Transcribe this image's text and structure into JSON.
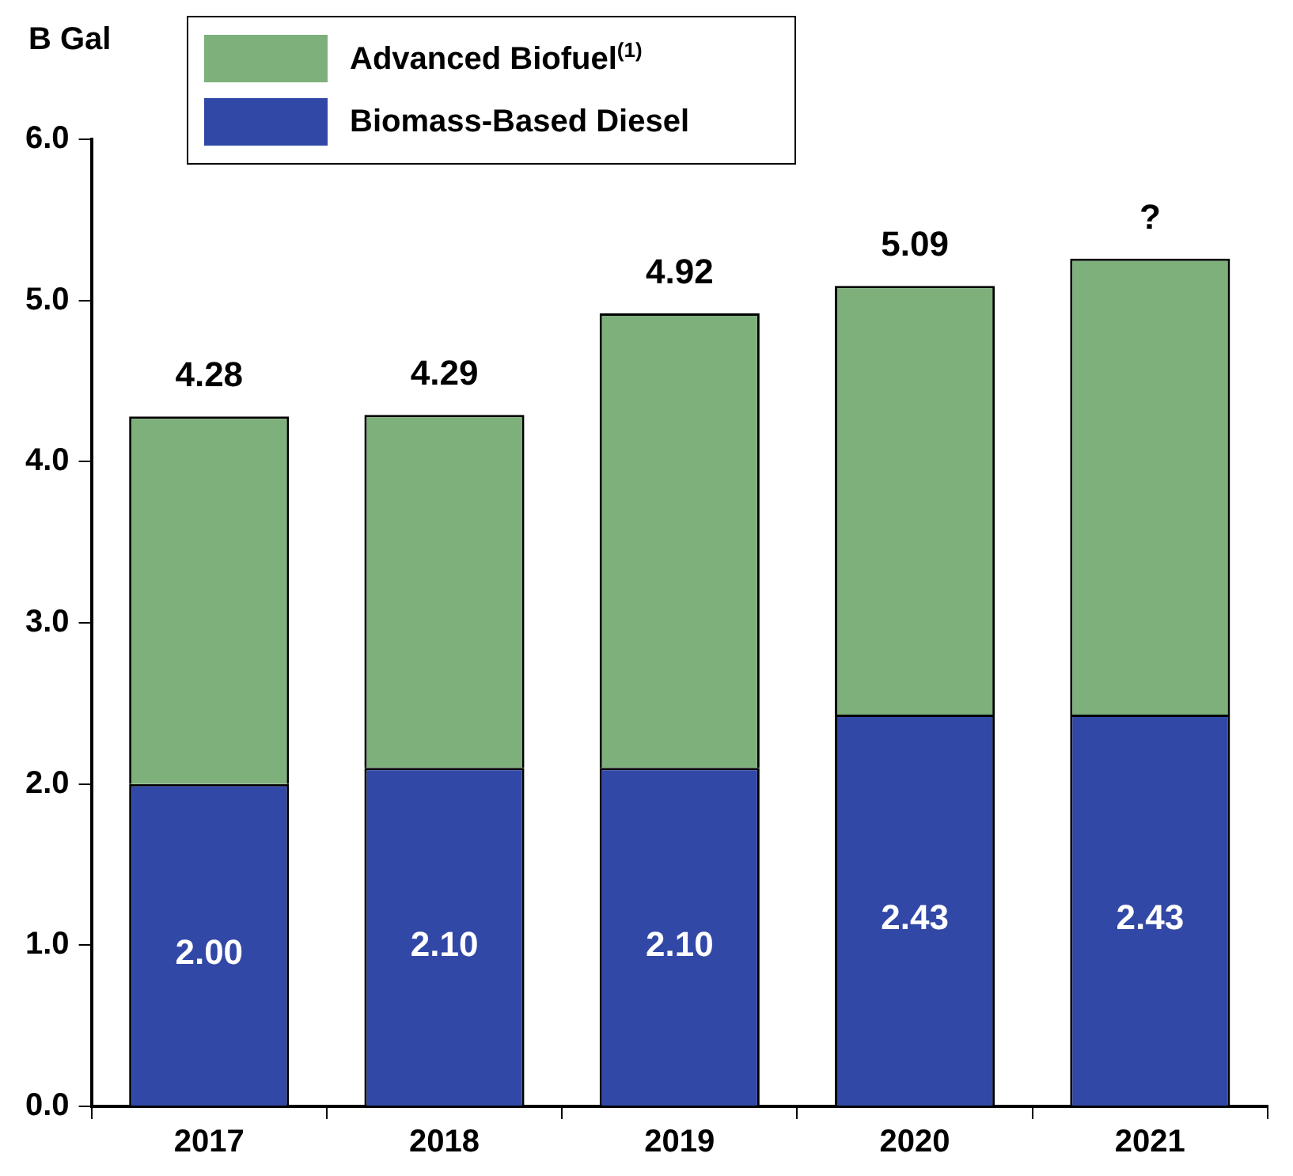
{
  "chart_data": {
    "type": "bar",
    "stacked": true,
    "ylabel": "B Gal",
    "categories": [
      "2017",
      "2018",
      "2019",
      "2020",
      "2021"
    ],
    "series": [
      {
        "name": "Biomass-Based Diesel",
        "color": "#3248a6",
        "values": [
          2.0,
          2.1,
          2.1,
          2.43,
          2.43
        ],
        "value_labels": [
          "2.00",
          "2.10",
          "2.10",
          "2.43",
          "2.43"
        ]
      },
      {
        "name": "Advanced Biofuel$^{(1)}$",
        "color": "#7db07b",
        "values": [
          2.28,
          2.19,
          2.82,
          2.66,
          2.83
        ]
      }
    ],
    "totals": [
      "4.28",
      "4.29",
      "4.92",
      "5.09",
      "?"
    ],
    "ylim": [
      0,
      6
    ],
    "yticks": [
      {
        "value": 0,
        "label": "0.0"
      },
      {
        "value": 1,
        "label": "1.0"
      },
      {
        "value": 2,
        "label": "2.0"
      },
      {
        "value": 3,
        "label": "3.0"
      },
      {
        "value": 4,
        "label": "4.0"
      },
      {
        "value": 5,
        "label": "5.0"
      },
      {
        "value": 6,
        "label": "6.0"
      }
    ],
    "legend": "top"
  }
}
